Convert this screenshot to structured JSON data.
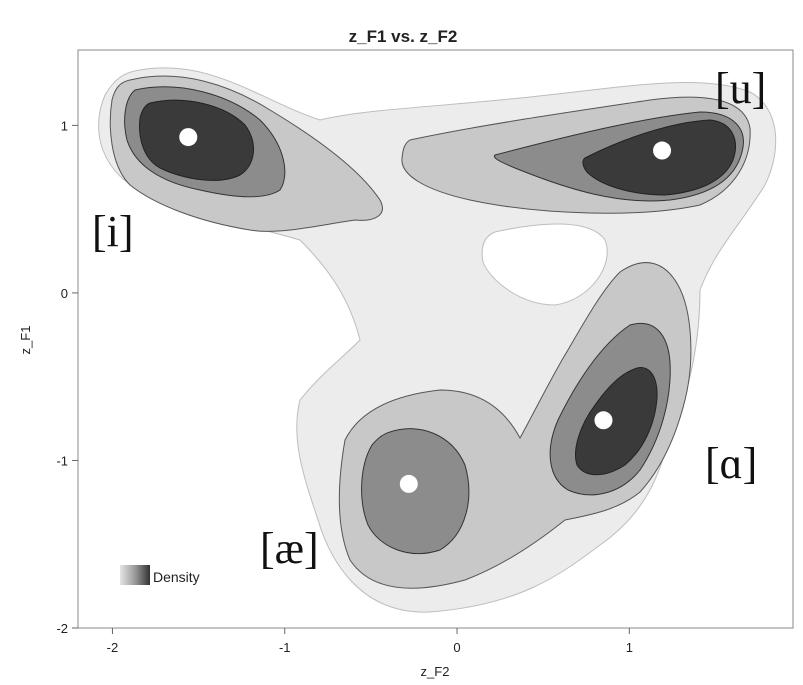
{
  "chart_data": {
    "type": "contour-density",
    "title": "z_F1 vs. z_F2",
    "xlabel": "z_F2",
    "ylabel": "z_F1",
    "xlim": [
      -2.2,
      1.95
    ],
    "ylim": [
      -2.0,
      1.45
    ],
    "xticks": [
      "-2",
      "-1",
      "0",
      "1"
    ],
    "yticks": [
      "1",
      "0",
      "-1",
      "-2"
    ],
    "legend": {
      "label": "Density",
      "placement": "bottom-left"
    },
    "grid": false,
    "clusters": [
      {
        "label": "[i]",
        "center_x": -1.56,
        "center_y": 0.93
      },
      {
        "label": "[u]",
        "center_x": 1.19,
        "center_y": 0.85
      },
      {
        "label": "[ɑ]",
        "center_x": 0.85,
        "center_y": -0.76
      },
      {
        "label": "[æ]",
        "center_x": -0.28,
        "center_y": -1.14
      }
    ],
    "density_colors": [
      "#ececec",
      "#c8c8c8",
      "#8c8c8c",
      "#3a3a3a"
    ]
  }
}
